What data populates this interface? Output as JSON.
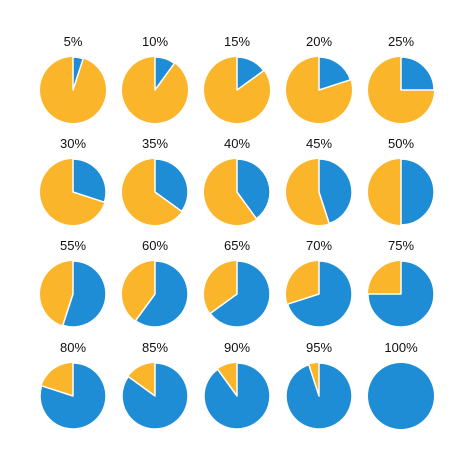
{
  "colors": {
    "fill": "#1f8dd6",
    "rest": "#fbb52b",
    "separator": "#ffffff"
  },
  "chart_data": {
    "type": "pie",
    "title": "",
    "values": [
      5,
      10,
      15,
      20,
      25,
      30,
      35,
      40,
      45,
      50,
      55,
      60,
      65,
      70,
      75,
      80,
      85,
      90,
      95,
      100
    ],
    "labels": [
      "5%",
      "10%",
      "15%",
      "20%",
      "25%",
      "30%",
      "35%",
      "40%",
      "45%",
      "50%",
      "55%",
      "60%",
      "65%",
      "70%",
      "75%",
      "80%",
      "85%",
      "90%",
      "95%",
      "100%"
    ]
  }
}
